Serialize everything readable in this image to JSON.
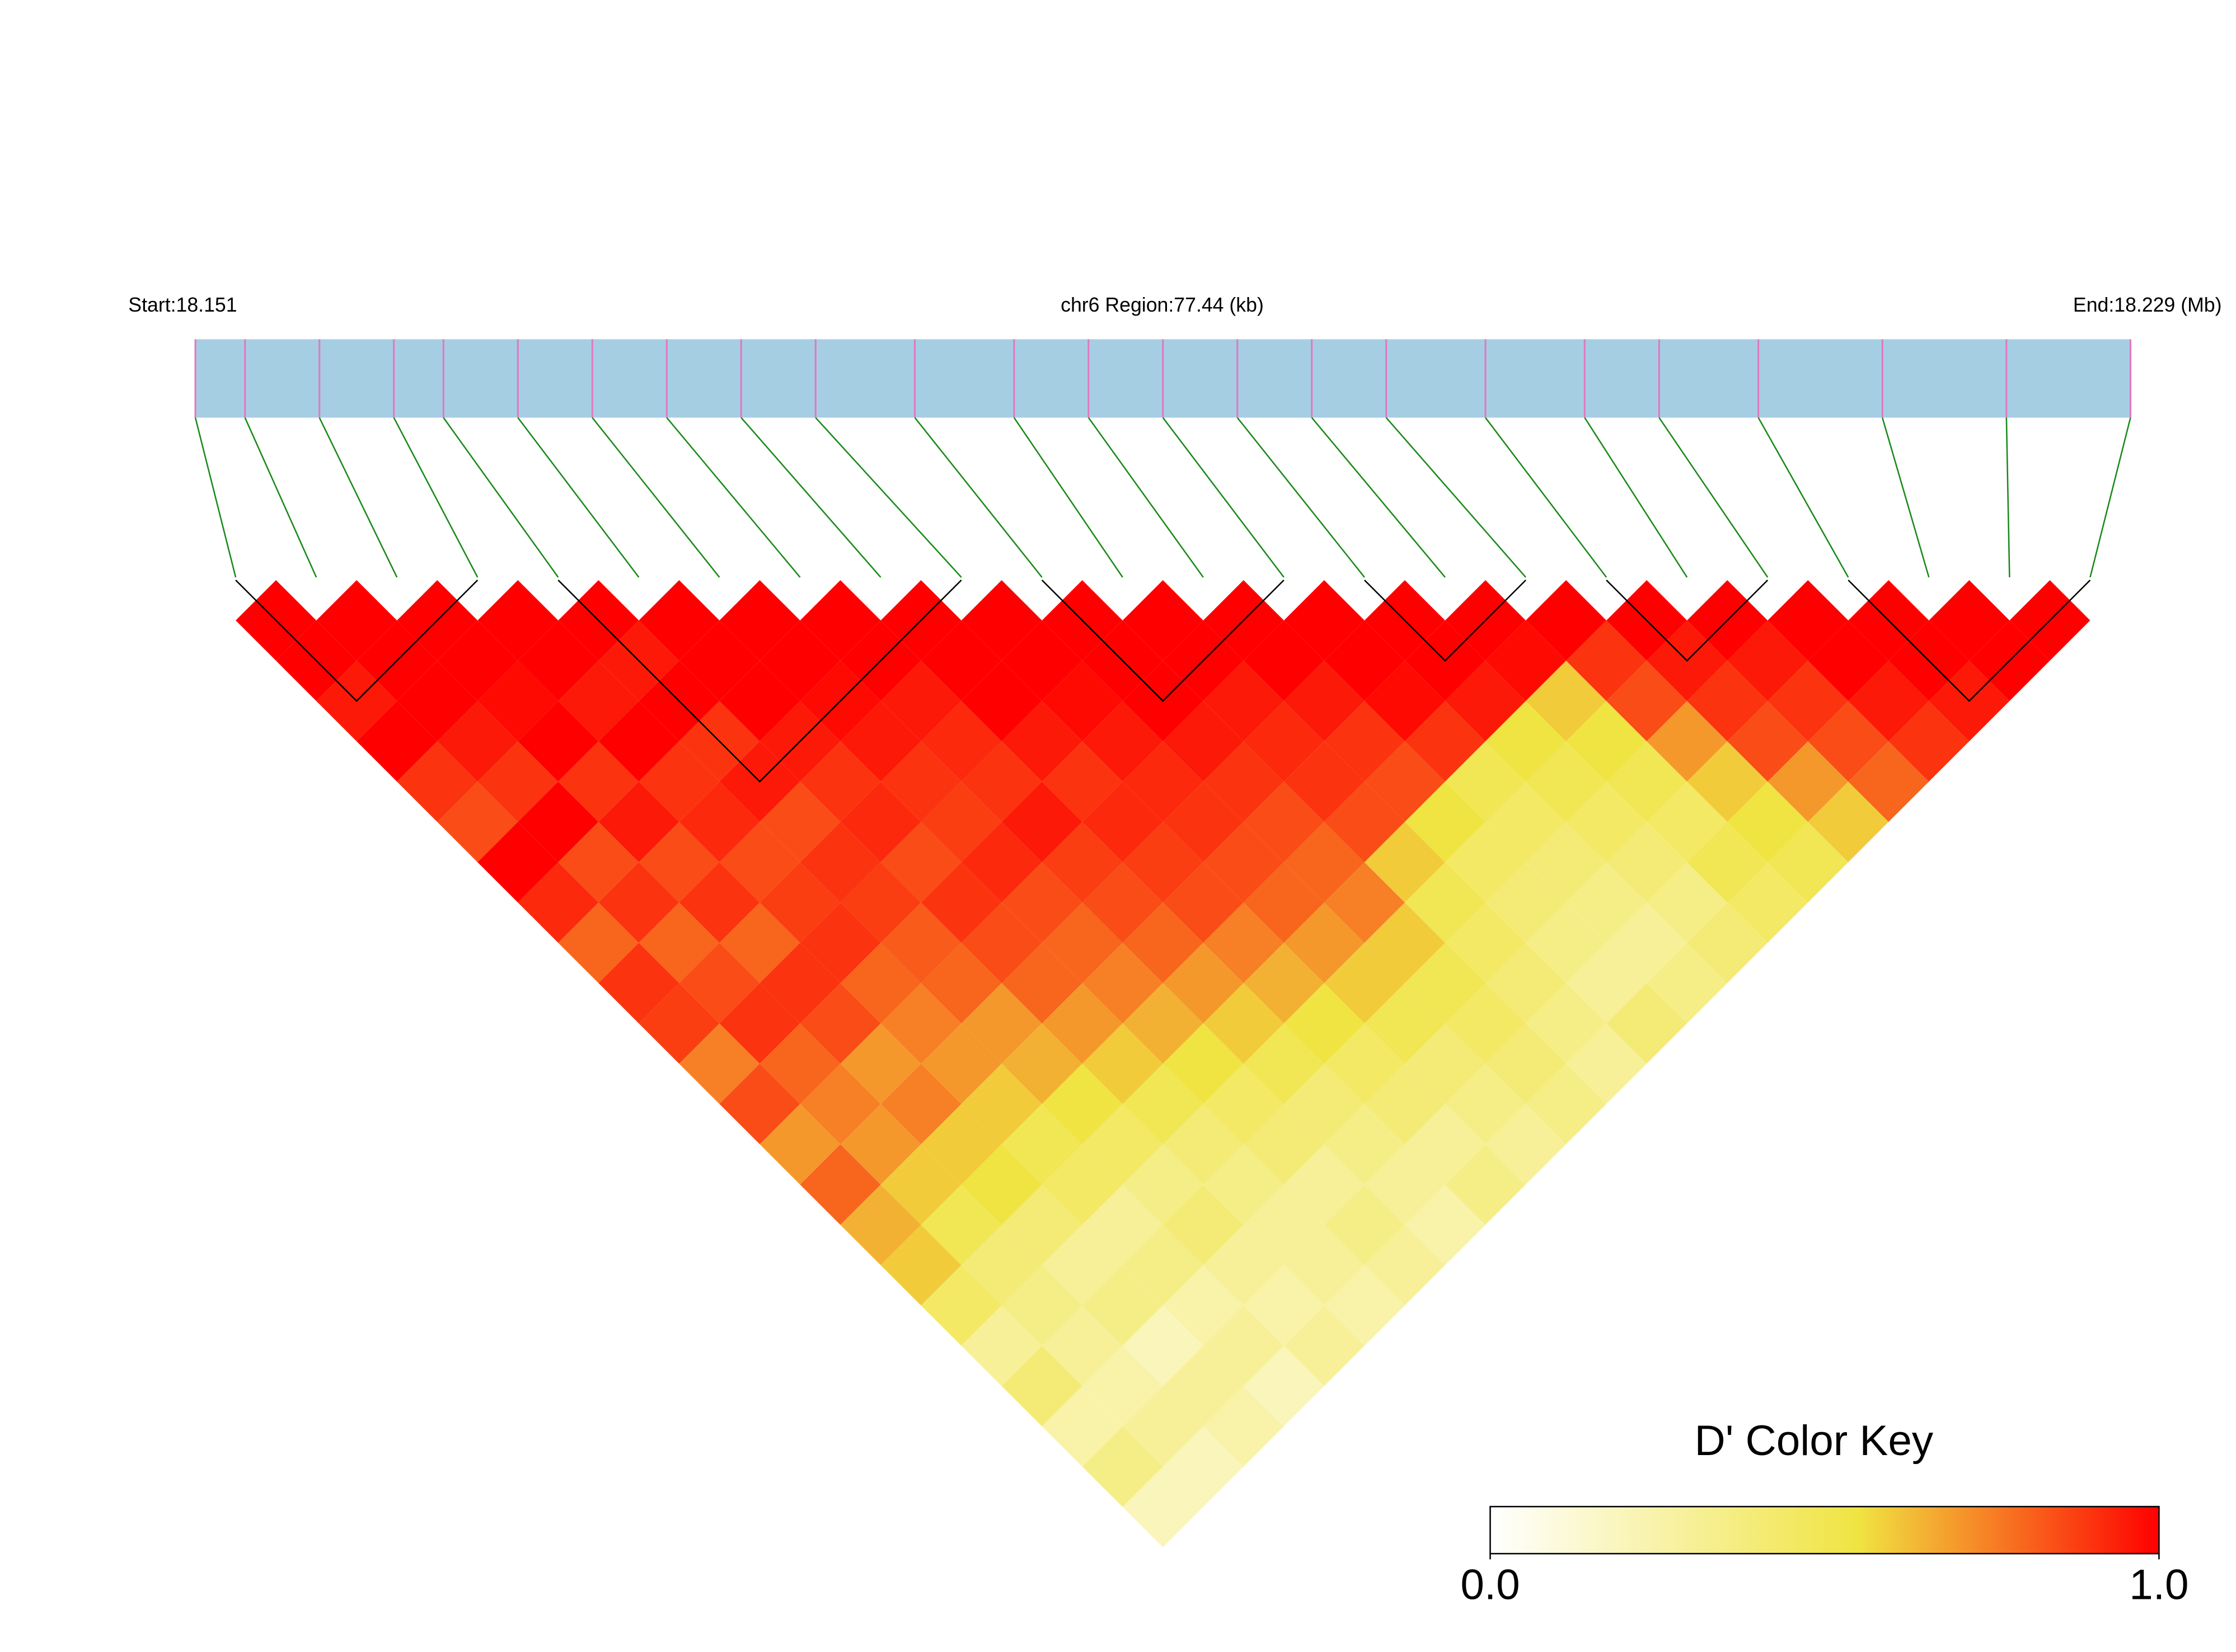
{
  "chart_data": {
    "type": "ld-heatmap",
    "start_label": "Start:18.151",
    "region_label": "chr6 Region:77.44 (kb)",
    "end_label": "End:18.229 (Mb)",
    "key_title": "D' Color Key",
    "key_ticks": [
      {
        "value": 0,
        "label": "0.0"
      },
      {
        "value": 1,
        "label": "1.0"
      }
    ],
    "color_stops": [
      {
        "value": 0,
        "color": "#ffffff"
      },
      {
        "value": 0.55,
        "color": "#f0e442"
      },
      {
        "value": 1,
        "color": "#ff0000"
      }
    ],
    "bar_color": "#a6cee3",
    "snp_tick_color": "#e377c2",
    "connector_color": "#1a8a1a",
    "positions": [
      18.151,
      18.153,
      18.156,
      18.159,
      18.161,
      18.164,
      18.167,
      18.17,
      18.173,
      18.176,
      18.18,
      18.184,
      18.187,
      18.19,
      18.193,
      18.196,
      18.199,
      18.203,
      18.207,
      18.21,
      18.214,
      18.219,
      18.224,
      18.229
    ],
    "ld": [
      [
        1,
        1,
        0.95,
        1,
        0.9,
        0.85,
        1,
        0.92,
        0.8,
        0.9,
        0.88,
        0.75,
        0.85,
        0.7,
        0.8,
        0.65,
        0.6,
        0.45,
        0.3,
        0.4,
        0.25,
        0.35,
        0.2
      ],
      [
        1,
        1,
        1,
        0.95,
        0.9,
        1,
        0.85,
        0.9,
        0.8,
        0.85,
        0.9,
        0.8,
        0.75,
        0.7,
        0.6,
        0.5,
        0.4,
        0.35,
        0.3,
        0.25,
        0.3,
        0.2
      ],
      [
        1,
        1,
        0.98,
        1,
        0.9,
        0.95,
        0.85,
        0.9,
        0.8,
        0.9,
        0.85,
        0.7,
        0.75,
        0.6,
        0.55,
        0.4,
        0.3,
        0.35,
        0.2,
        0.3,
        0.25
      ],
      [
        1,
        1,
        0.95,
        1,
        0.9,
        0.92,
        0.85,
        0.88,
        0.9,
        0.8,
        0.75,
        0.7,
        0.6,
        0.5,
        0.45,
        0.3,
        0.35,
        0.25,
        0.3,
        0.2
      ],
      [
        1,
        0.95,
        1,
        0.9,
        0.95,
        0.85,
        0.9,
        0.88,
        0.82,
        0.8,
        0.7,
        0.65,
        0.55,
        0.45,
        0.35,
        0.4,
        0.3,
        0.25,
        0.3
      ],
      [
        1,
        1,
        1,
        0.95,
        0.9,
        0.92,
        0.85,
        0.9,
        0.85,
        0.8,
        0.7,
        0.6,
        0.5,
        0.4,
        0.35,
        0.3,
        0.3,
        0.25
      ],
      [
        1,
        1,
        0.98,
        0.95,
        0.9,
        0.88,
        0.92,
        0.85,
        0.8,
        0.75,
        0.65,
        0.55,
        0.45,
        0.4,
        0.3,
        0.35,
        0.3
      ],
      [
        1,
        1,
        0.95,
        0.92,
        0.9,
        0.95,
        0.88,
        0.85,
        0.8,
        0.7,
        0.6,
        0.5,
        0.4,
        0.35,
        0.3,
        0.25
      ],
      [
        1,
        1,
        1,
        0.95,
        0.9,
        0.92,
        0.88,
        0.85,
        0.75,
        0.65,
        0.55,
        0.45,
        0.4,
        0.3,
        0.35
      ],
      [
        1,
        1,
        0.98,
        0.95,
        0.92,
        0.9,
        0.85,
        0.8,
        0.7,
        0.6,
        0.5,
        0.4,
        0.35,
        0.3
      ],
      [
        1,
        1,
        1,
        0.95,
        0.9,
        0.85,
        0.8,
        0.75,
        0.6,
        0.5,
        0.45,
        0.4,
        0.35
      ],
      [
        1,
        1,
        0.95,
        0.92,
        0.9,
        0.85,
        0.6,
        0.5,
        0.45,
        0.4,
        0.35,
        0.3
      ],
      [
        1,
        1,
        0.95,
        0.9,
        0.85,
        0.55,
        0.45,
        0.4,
        0.35,
        0.3,
        0.4
      ],
      [
        1,
        1,
        0.98,
        0.9,
        0.5,
        0.45,
        0.4,
        0.35,
        0.3,
        0.35
      ],
      [
        1,
        1,
        0.95,
        0.55,
        0.5,
        0.45,
        0.4,
        0.35,
        0.4
      ],
      [
        1,
        0.98,
        0.6,
        0.55,
        0.5,
        0.45,
        0.5,
        0.45
      ],
      [
        1,
        0.9,
        0.85,
        0.7,
        0.6,
        0.55,
        0.5
      ],
      [
        1,
        0.95,
        0.9,
        0.85,
        0.7,
        0.6
      ],
      [
        1,
        0.95,
        0.9,
        0.85,
        0.8
      ],
      [
        1,
        1,
        0.95,
        0.9
      ],
      [
        1,
        1,
        0.95
      ],
      [
        1,
        1
      ],
      [
        1
      ]
    ],
    "blocks": [
      [
        0,
        3
      ],
      [
        4,
        9
      ],
      [
        10,
        13
      ],
      [
        14,
        16
      ],
      [
        17,
        19
      ],
      [
        20,
        23
      ]
    ]
  }
}
